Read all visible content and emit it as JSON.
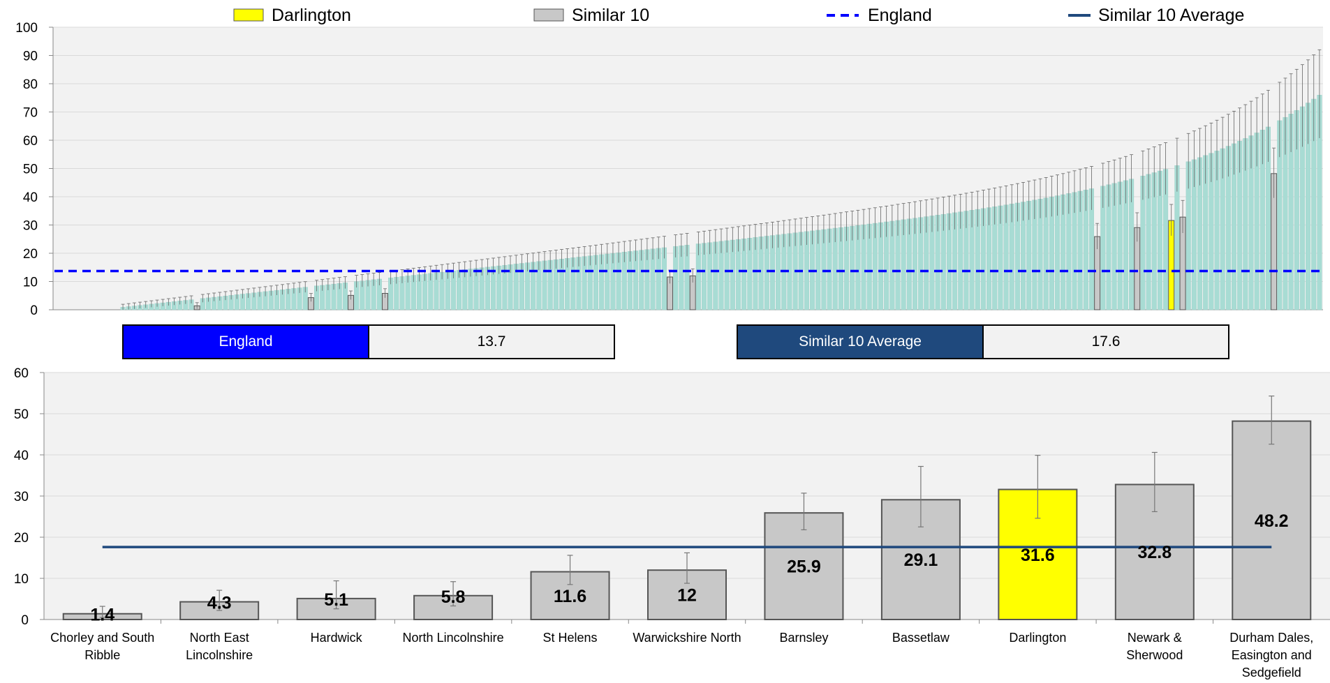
{
  "colors": {
    "darlington": "#ffff00",
    "similar": "#c8c8c8",
    "others": "#a8dcd4",
    "england": "#0000ff",
    "similar_avg": "#1f497d",
    "plot_bg": "#f2f2f2"
  },
  "legend": [
    {
      "label": "Darlington",
      "kind": "swatch",
      "color": "#ffff00"
    },
    {
      "label": "Similar 10",
      "kind": "swatch",
      "color": "#c8c8c8"
    },
    {
      "label": "England",
      "kind": "dashed",
      "color": "#0000ff"
    },
    {
      "label": "Similar 10 Average",
      "kind": "line",
      "color": "#1f497d"
    }
  ],
  "summary": {
    "england_label": "England",
    "england_value": "13.7",
    "similar_avg_label": "Similar 10 Average",
    "similar_avg_value": "17.6"
  },
  "chart_data": [
    {
      "type": "bar",
      "description_of_series": "All CCGs ranked ascending with confidence intervals",
      "ylim": [
        0,
        100
      ],
      "yticks": [
        0,
        10,
        20,
        30,
        40,
        50,
        60,
        70,
        80,
        90,
        100
      ],
      "n_bars": 211,
      "value_range": [
        0.9,
        76.0
      ],
      "england_value": 13.7,
      "highlighted_ranks": {
        "Chorley and South Ribble": 13,
        "North East Lincolnshire": 33,
        "Hardwick": 40,
        "North Lincolnshire": 46,
        "St Helens": 96,
        "Warwickshire North": 100,
        "Barnsley": 171,
        "Bassetlaw": 178,
        "Darlington": 184,
        "Newark & Sherwood": 186,
        "Durham Dales, Easington and Sedgefield": 202
      },
      "grid": true
    },
    {
      "type": "bar",
      "categories": [
        "Chorley and South Ribble",
        "North East Lincolnshire",
        "Hardwick",
        "North Lincolnshire",
        "St Helens",
        "Warwickshire North",
        "Barnsley",
        "Bassetlaw",
        "Darlington",
        "Newark & Sherwood",
        "Durham Dales, Easington and Sedgefield"
      ],
      "category_lines": [
        [
          "Chorley and South",
          "Ribble"
        ],
        [
          "North East",
          "Lincolnshire"
        ],
        [
          "Hardwick"
        ],
        [
          "North Lincolnshire"
        ],
        [
          "St Helens"
        ],
        [
          "Warwickshire North"
        ],
        [
          "Barnsley"
        ],
        [
          "Bassetlaw"
        ],
        [
          "Darlington"
        ],
        [
          "Newark &",
          "Sherwood"
        ],
        [
          "Durham Dales,",
          "Easington and",
          "Sedgefield"
        ]
      ],
      "values": [
        1.4,
        4.3,
        5.1,
        5.8,
        11.6,
        12,
        25.9,
        29.1,
        31.6,
        32.8,
        48.2
      ],
      "value_labels": [
        "1.4",
        "4.3",
        "5.1",
        "5.8",
        "11.6",
        "12",
        "25.9",
        "29.1",
        "31.6",
        "32.8",
        "48.2"
      ],
      "ci_low": [
        0.5,
        2.2,
        2.6,
        3.3,
        8.5,
        8.8,
        21.8,
        22.5,
        24.6,
        26.2,
        42.6
      ],
      "ci_high": [
        3.2,
        7.1,
        9.4,
        9.2,
        15.6,
        16.2,
        30.7,
        37.2,
        39.9,
        40.6,
        54.3
      ],
      "highlight": "Darlington",
      "similar_avg": 17.6,
      "ylim": [
        0,
        60
      ],
      "yticks": [
        0,
        10,
        20,
        30,
        40,
        50,
        60
      ],
      "grid": true
    }
  ]
}
